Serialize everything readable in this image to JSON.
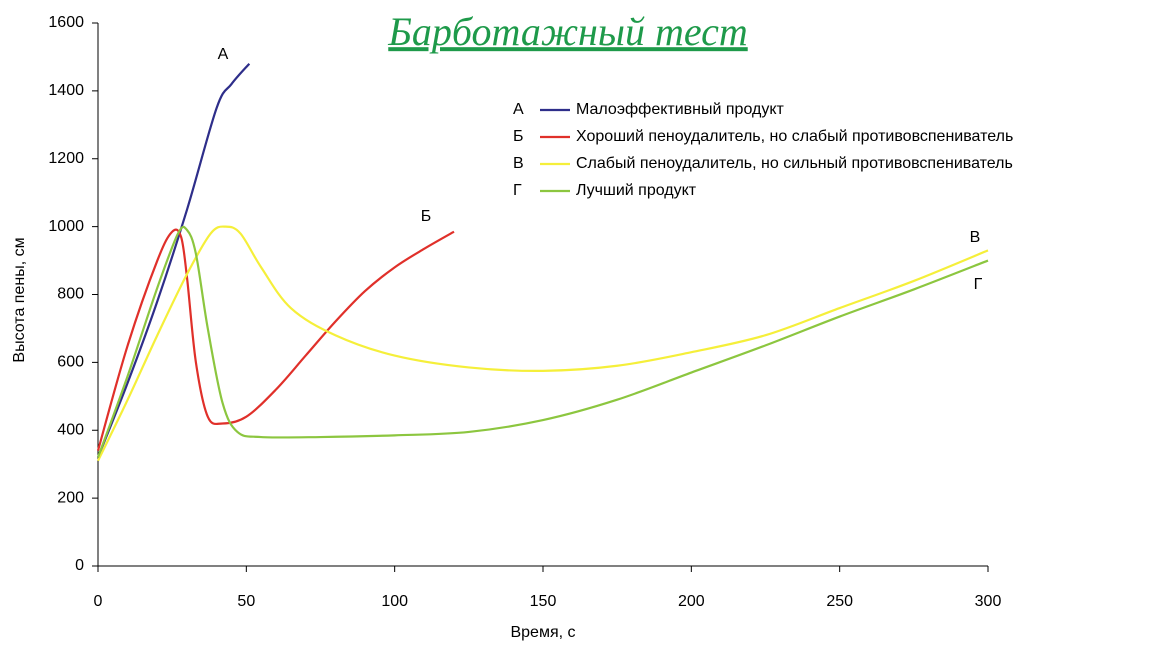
{
  "chart_data": {
    "type": "line",
    "title": "Барботажный тест",
    "xlabel": "Время, с",
    "ylabel": "Высота пены, см",
    "xlim": [
      0,
      300
    ],
    "xticks": [
      0,
      50,
      100,
      150,
      200,
      250,
      300
    ],
    "ylim": [
      0,
      1600
    ],
    "yticks": [
      0,
      200,
      400,
      600,
      800,
      1000,
      1200,
      1400,
      1600
    ],
    "grid": false,
    "legend": "upper right",
    "series": [
      {
        "label": "А",
        "name": "Малоэффективный продукт",
        "color": "#2e2e8a",
        "x": [
          0,
          10,
          20,
          30,
          40,
          45,
          51
        ],
        "values": [
          320,
          540,
          780,
          1050,
          1350,
          1420,
          1480
        ]
      },
      {
        "label": "Б",
        "name": "Хороший пеноудалитель, но слабый противовспениватель",
        "color": "#e0302a",
        "x": [
          0,
          10,
          20,
          25,
          28,
          30,
          33,
          37,
          42,
          50,
          60,
          70,
          80,
          90,
          100,
          110,
          120
        ],
        "values": [
          340,
          650,
          900,
          985,
          970,
          850,
          600,
          440,
          420,
          440,
          520,
          620,
          720,
          810,
          880,
          935,
          985
        ]
      },
      {
        "label": "В",
        "name": "Слабый пеноудалитель, но сильный противовспениватель",
        "color": "#f5ef3a",
        "x": [
          0,
          10,
          20,
          30,
          38,
          43,
          48,
          55,
          65,
          80,
          100,
          125,
          150,
          175,
          200,
          225,
          250,
          275,
          300
        ],
        "values": [
          310,
          490,
          680,
          860,
          980,
          1000,
          980,
          880,
          760,
          680,
          620,
          585,
          575,
          590,
          630,
          680,
          760,
          840,
          930
        ]
      },
      {
        "label": "Г",
        "name": "Лучший продукт",
        "color": "#8cc63f",
        "x": [
          0,
          10,
          20,
          27,
          30,
          33,
          37,
          42,
          47,
          55,
          75,
          100,
          125,
          150,
          175,
          200,
          225,
          250,
          275,
          300
        ],
        "values": [
          320,
          560,
          820,
          980,
          990,
          920,
          700,
          480,
          395,
          380,
          380,
          385,
          395,
          430,
          490,
          570,
          650,
          735,
          815,
          900
        ]
      }
    ]
  }
}
